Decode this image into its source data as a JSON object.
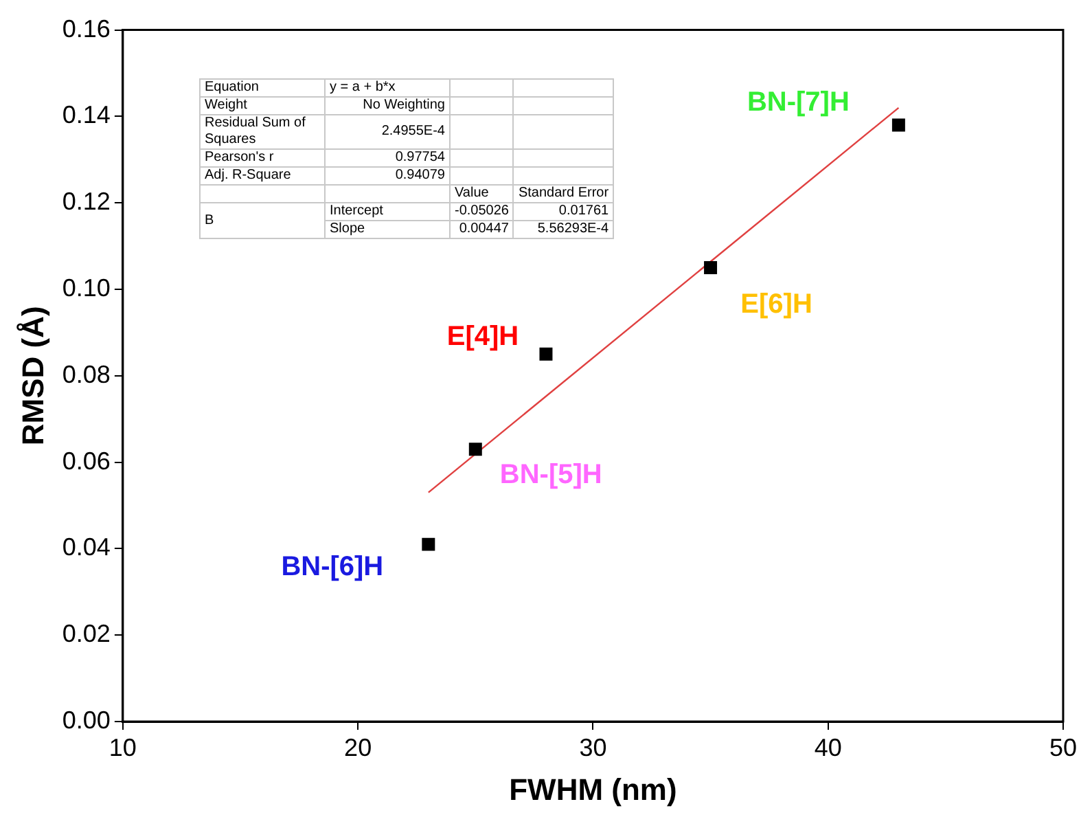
{
  "chart_data": {
    "type": "scatter",
    "xlabel": "FWHM (nm)",
    "ylabel": "RMSD (Å)",
    "xlim": [
      10,
      50
    ],
    "xticks": [
      10,
      20,
      30,
      40,
      50
    ],
    "ylim": [
      0,
      0.16
    ],
    "yticks": [
      {
        "value": 0,
        "label": "0.00"
      },
      0.02,
      0.04,
      0.06,
      0.08,
      {
        "value": 0.1,
        "label": "0.10"
      },
      0.12,
      0.14,
      0.16
    ],
    "grid": false,
    "legend": false,
    "marker": "square",
    "series": [
      {
        "color": "#000000",
        "x": [
          23,
          25,
          28,
          35,
          43
        ],
        "values": [
          0.041,
          0.063,
          0.085,
          0.105,
          0.138
        ]
      },
      {
        "type": "line",
        "color": "#e04040",
        "marker": "none",
        "x": [
          23,
          43
        ],
        "values": [
          0.053,
          0.142
        ]
      }
    ],
    "annotations": [
      {
        "text": "BN-[6]H",
        "x": 23,
        "y": 0.041
      },
      {
        "text": "BN-[5]H",
        "x": 25,
        "y": 0.063
      },
      {
        "text": "E[4]H",
        "x": 28,
        "y": 0.085
      },
      {
        "text": "E[6]H",
        "x": 35,
        "y": 0.105
      },
      {
        "text": "BN-[7]H",
        "x": 43,
        "y": 0.138
      },
      "Equation",
      "y = a + b*x",
      "Weight",
      "No Weighting",
      "Residual Sum of Squares",
      "2.4955E-4",
      "Pearson's r",
      "0.97754",
      "Adj. R-Square",
      "0.94079",
      "Value",
      "Standard Error",
      "B",
      "Intercept",
      "-0.05026",
      "0.01761",
      "Slope",
      "0.00447",
      "5.56293E-4"
    ]
  }
}
